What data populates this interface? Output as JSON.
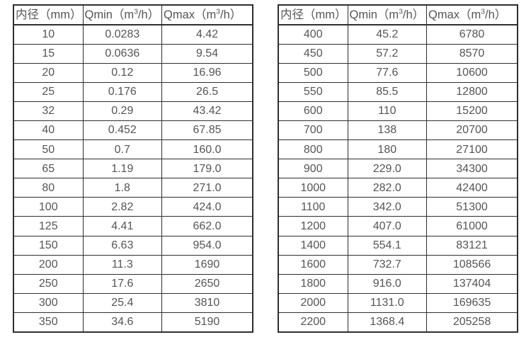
{
  "colors": {
    "background": "#ffffff",
    "text": "#555555",
    "border": "#2e2e2e"
  },
  "tables": [
    {
      "name": "flow-table-small-diameters",
      "headers": [
        "内径（mm）",
        "Qmin（m³/h）",
        "Qmax（m³/h）"
      ],
      "rows": [
        [
          "10",
          "0.0283",
          "4.42"
        ],
        [
          "15",
          "0.0636",
          "9.54"
        ],
        [
          "20",
          "0.12",
          "16.96"
        ],
        [
          "25",
          "0.176",
          "26.5"
        ],
        [
          "32",
          "0.29",
          "43.42"
        ],
        [
          "40",
          "0.452",
          "67.85"
        ],
        [
          "50",
          "0.7",
          "160.0"
        ],
        [
          "65",
          "1.19",
          "179.0"
        ],
        [
          "80",
          "1.8",
          "271.0"
        ],
        [
          "100",
          "2.82",
          "424.0"
        ],
        [
          "125",
          "4.41",
          "662.0"
        ],
        [
          "150",
          "6.63",
          "954.0"
        ],
        [
          "200",
          "11.3",
          "1690"
        ],
        [
          "250",
          "17.6",
          "2650"
        ],
        [
          "300",
          "25.4",
          "3810"
        ],
        [
          "350",
          "34.6",
          "5190"
        ]
      ]
    },
    {
      "name": "flow-table-large-diameters",
      "headers": [
        "内径（mm）",
        "Qmin（m³/h）",
        "Qmax（m³/h）"
      ],
      "rows": [
        [
          "400",
          "45.2",
          "6780"
        ],
        [
          "450",
          "57.2",
          "8570"
        ],
        [
          "500",
          "77.6",
          "10600"
        ],
        [
          "550",
          "85.5",
          "12800"
        ],
        [
          "600",
          "110",
          "15200"
        ],
        [
          "700",
          "138",
          "20700"
        ],
        [
          "800",
          "180",
          "27100"
        ],
        [
          "900",
          "229.0",
          "34300"
        ],
        [
          "1000",
          "282.0",
          "42400"
        ],
        [
          "1100",
          "342.0",
          "51300"
        ],
        [
          "1200",
          "407.0",
          "61000"
        ],
        [
          "1400",
          "554.1",
          "83121"
        ],
        [
          "1600",
          "732.7",
          "108566"
        ],
        [
          "1800",
          "916.0",
          "137404"
        ],
        [
          "2000",
          "1131.0",
          "169635"
        ],
        [
          "2200",
          "1368.4",
          "205258"
        ]
      ]
    }
  ]
}
